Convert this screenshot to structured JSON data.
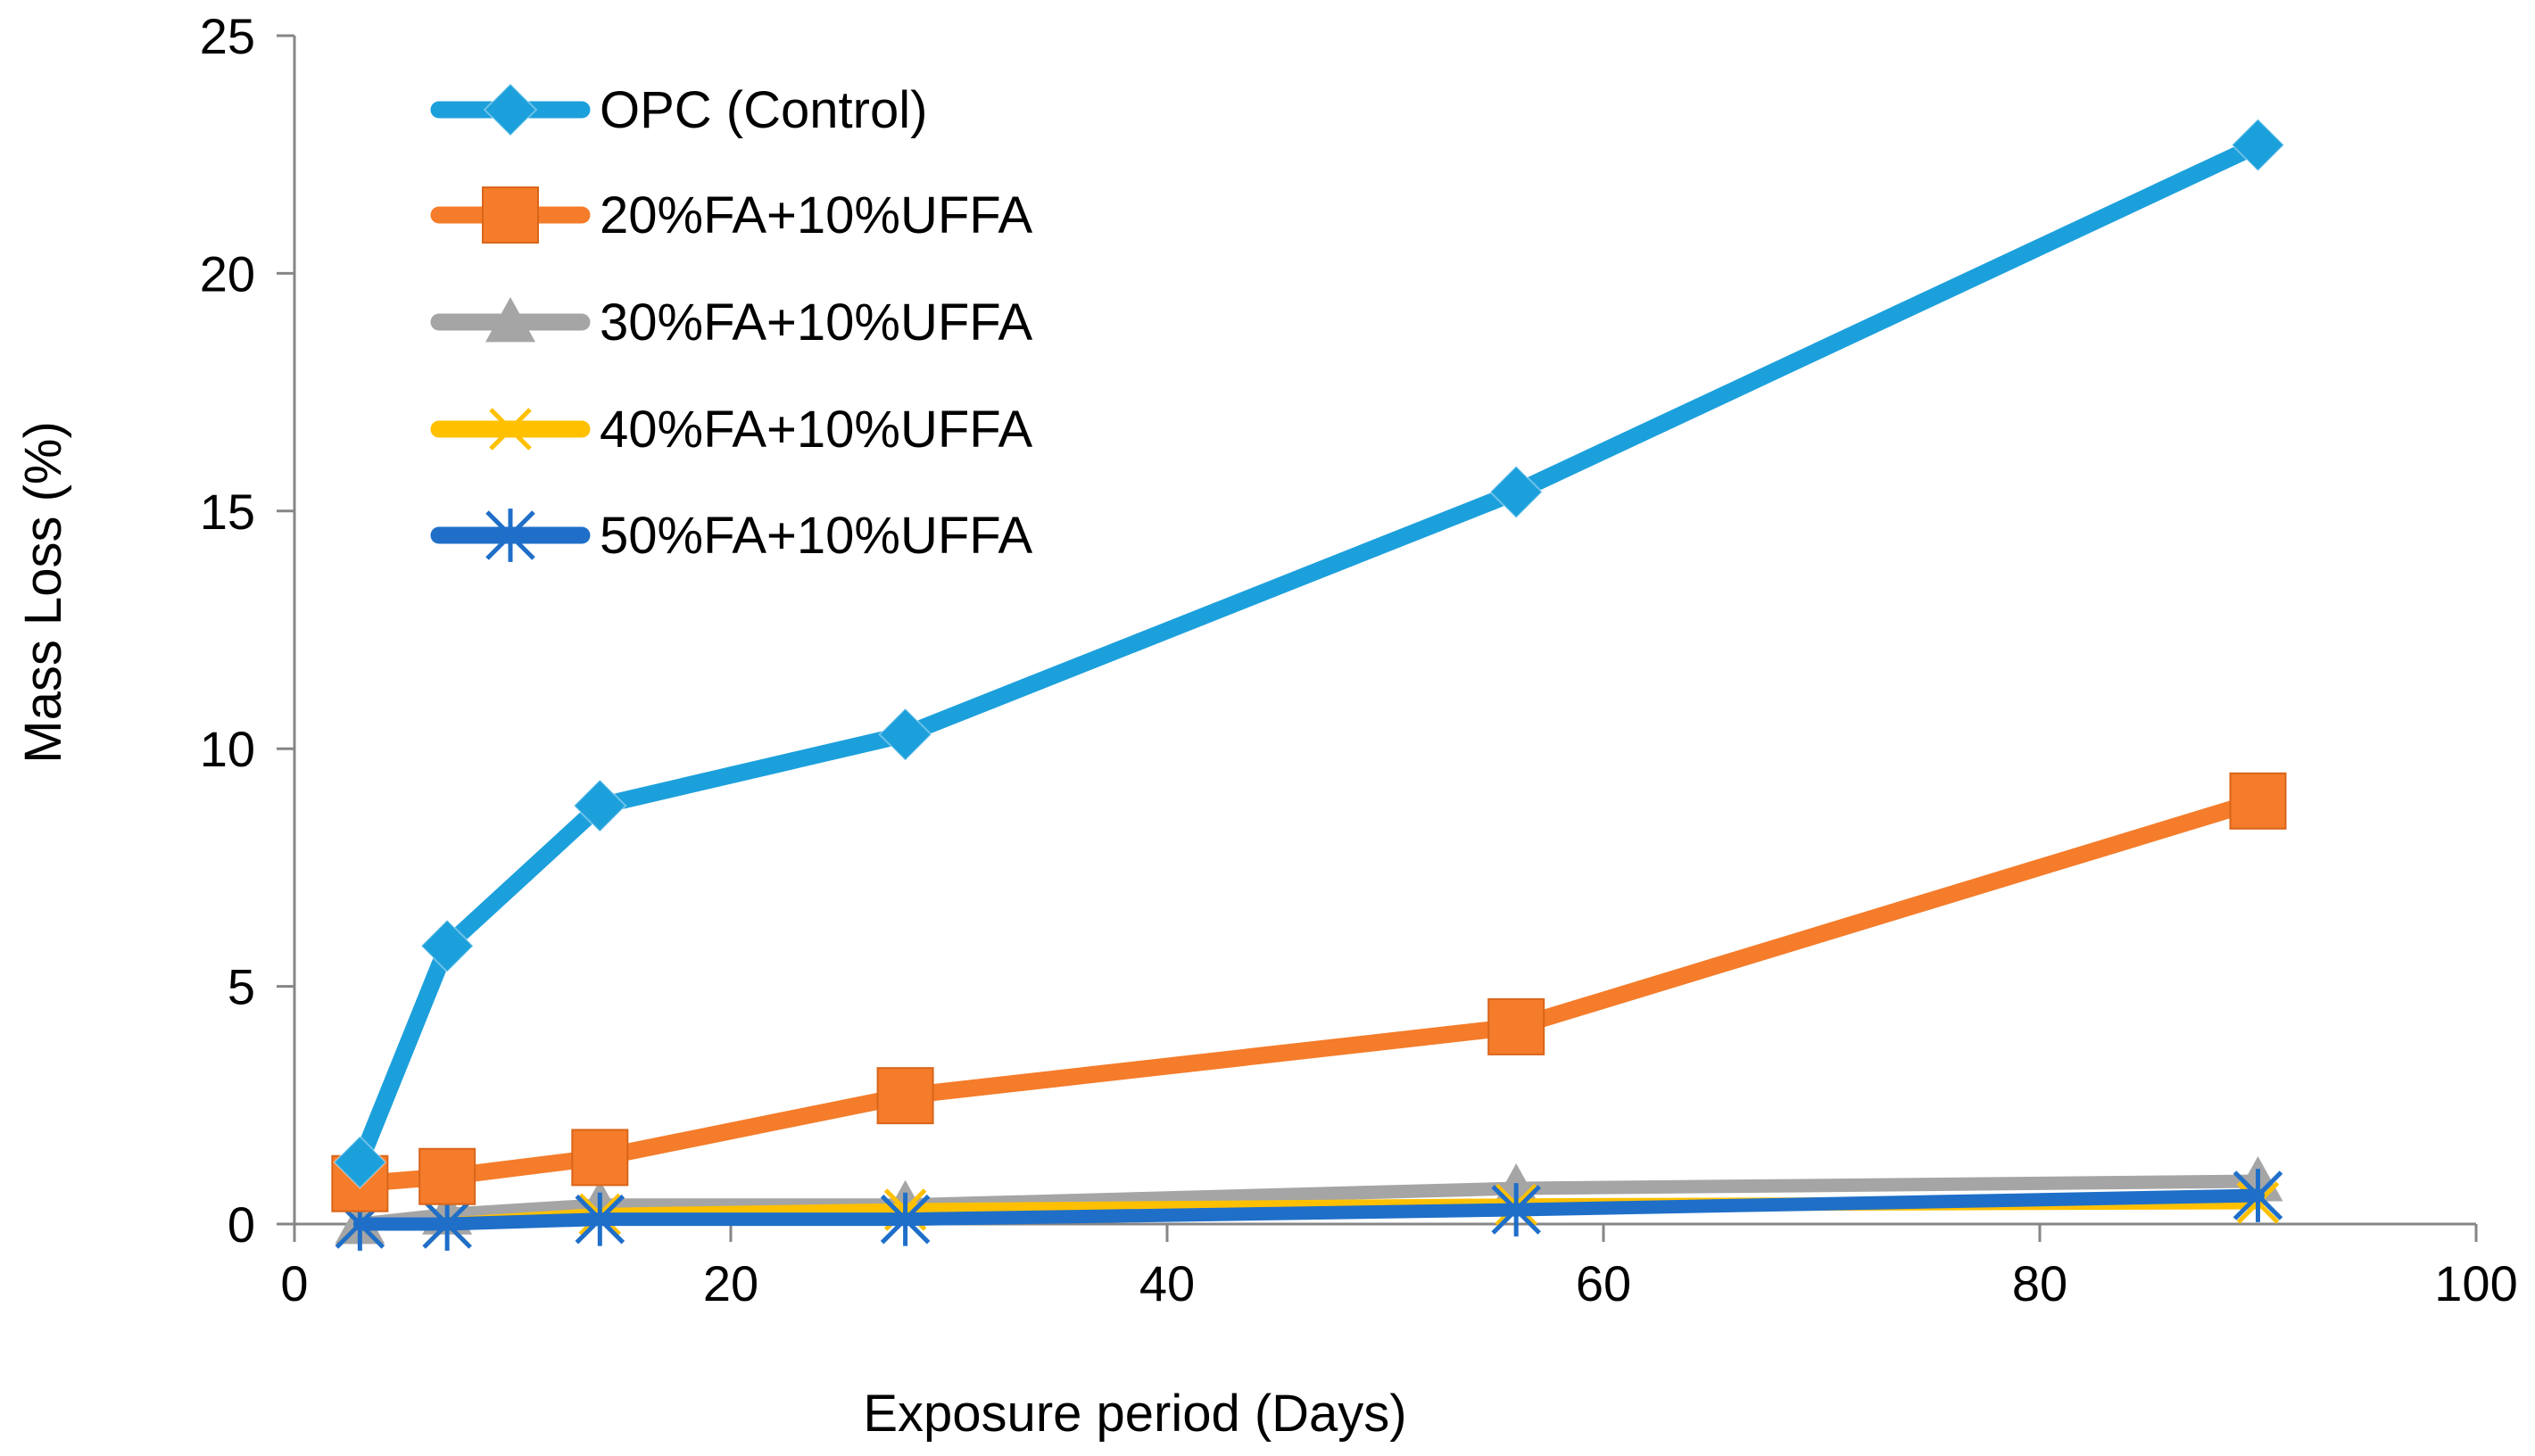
{
  "chart_data": {
    "type": "line",
    "title": "",
    "xlabel": "Exposure period (Days)",
    "ylabel": "Mass Loss (%)",
    "xlim": [
      0,
      100
    ],
    "ylim": [
      0,
      25
    ],
    "xticks": [
      0,
      20,
      40,
      60,
      80,
      100
    ],
    "yticks": [
      0,
      5,
      10,
      15,
      20,
      25
    ],
    "xtick_labels": [
      "0",
      "20",
      "40",
      "60",
      "80",
      "100"
    ],
    "ytick_labels": [
      "0",
      "5",
      "10",
      "15",
      "20",
      "25"
    ],
    "grid": false,
    "legend_position": "top-left",
    "x": [
      3,
      7,
      14,
      28,
      56,
      90
    ],
    "series": [
      {
        "name": "OPC (Control)",
        "color": "#1ca0dc",
        "marker": "diamond",
        "values": [
          1.3,
          5.85,
          8.8,
          10.3,
          15.4,
          22.7
        ]
      },
      {
        "name": "20%FA+10%UFFA",
        "color": "#f47c2a",
        "marker": "square",
        "values": [
          0.85,
          1.0,
          1.4,
          2.7,
          4.15,
          8.9
        ]
      },
      {
        "name": "30%FA+10%UFFA",
        "color": "#a5a5a5",
        "marker": "triangle",
        "values": [
          0.0,
          0.2,
          0.4,
          0.4,
          0.75,
          0.9
        ]
      },
      {
        "name": "40%FA+10%UFFA",
        "color": "#ffc000",
        "marker": "x",
        "values": [
          0.0,
          0.0,
          0.2,
          0.3,
          0.4,
          0.45
        ]
      },
      {
        "name": "50%FA+10%UFFA",
        "color": "#1f6fc9",
        "marker": "asterisk",
        "values": [
          0.0,
          0.0,
          0.1,
          0.1,
          0.3,
          0.6
        ]
      }
    ]
  }
}
